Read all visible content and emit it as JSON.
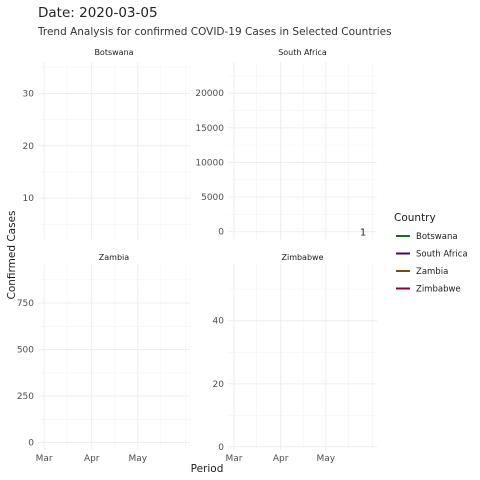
{
  "chart_data": {
    "type": "line",
    "title": "Date: 2020-03-05",
    "subtitle": "Trend Analysis for confirmed COVID-19 Cases in Selected Countries",
    "xlabel": "Period",
    "ylabel": "Confirmed Cases",
    "x_ticks": [
      "Mar",
      "Apr",
      "May"
    ],
    "grid": true,
    "legend": {
      "title": "Country",
      "placement": "right",
      "entries": [
        {
          "name": "Botswana",
          "color": "#1a6b1a"
        },
        {
          "name": "South Africa",
          "color": "#3b0a5c"
        },
        {
          "name": "Zambia",
          "color": "#7a4a12"
        },
        {
          "name": "Zimbabwe",
          "color": "#8a0033"
        }
      ]
    },
    "panels": [
      {
        "name": "Botswana",
        "ylim": [
          2,
          36
        ],
        "y_ticks": [
          10,
          20,
          30
        ],
        "color": "#1a6b1a",
        "points": []
      },
      {
        "name": "South Africa",
        "ylim": [
          -1200,
          24500
        ],
        "y_ticks": [
          0,
          5000,
          10000,
          15000,
          20000
        ],
        "color": "#3b0a5c",
        "points": [
          {
            "x": "2020-03-05",
            "y": 1,
            "label": "1"
          }
        ]
      },
      {
        "name": "Zambia",
        "ylim": [
          -40,
          960
        ],
        "y_ticks": [
          0,
          250,
          500,
          750
        ],
        "color": "#7a4a12",
        "points": []
      },
      {
        "name": "Zimbabwe",
        "ylim": [
          -1,
          58
        ],
        "y_ticks": [
          0,
          20,
          40
        ],
        "color": "#8a0033",
        "points": []
      }
    ]
  }
}
